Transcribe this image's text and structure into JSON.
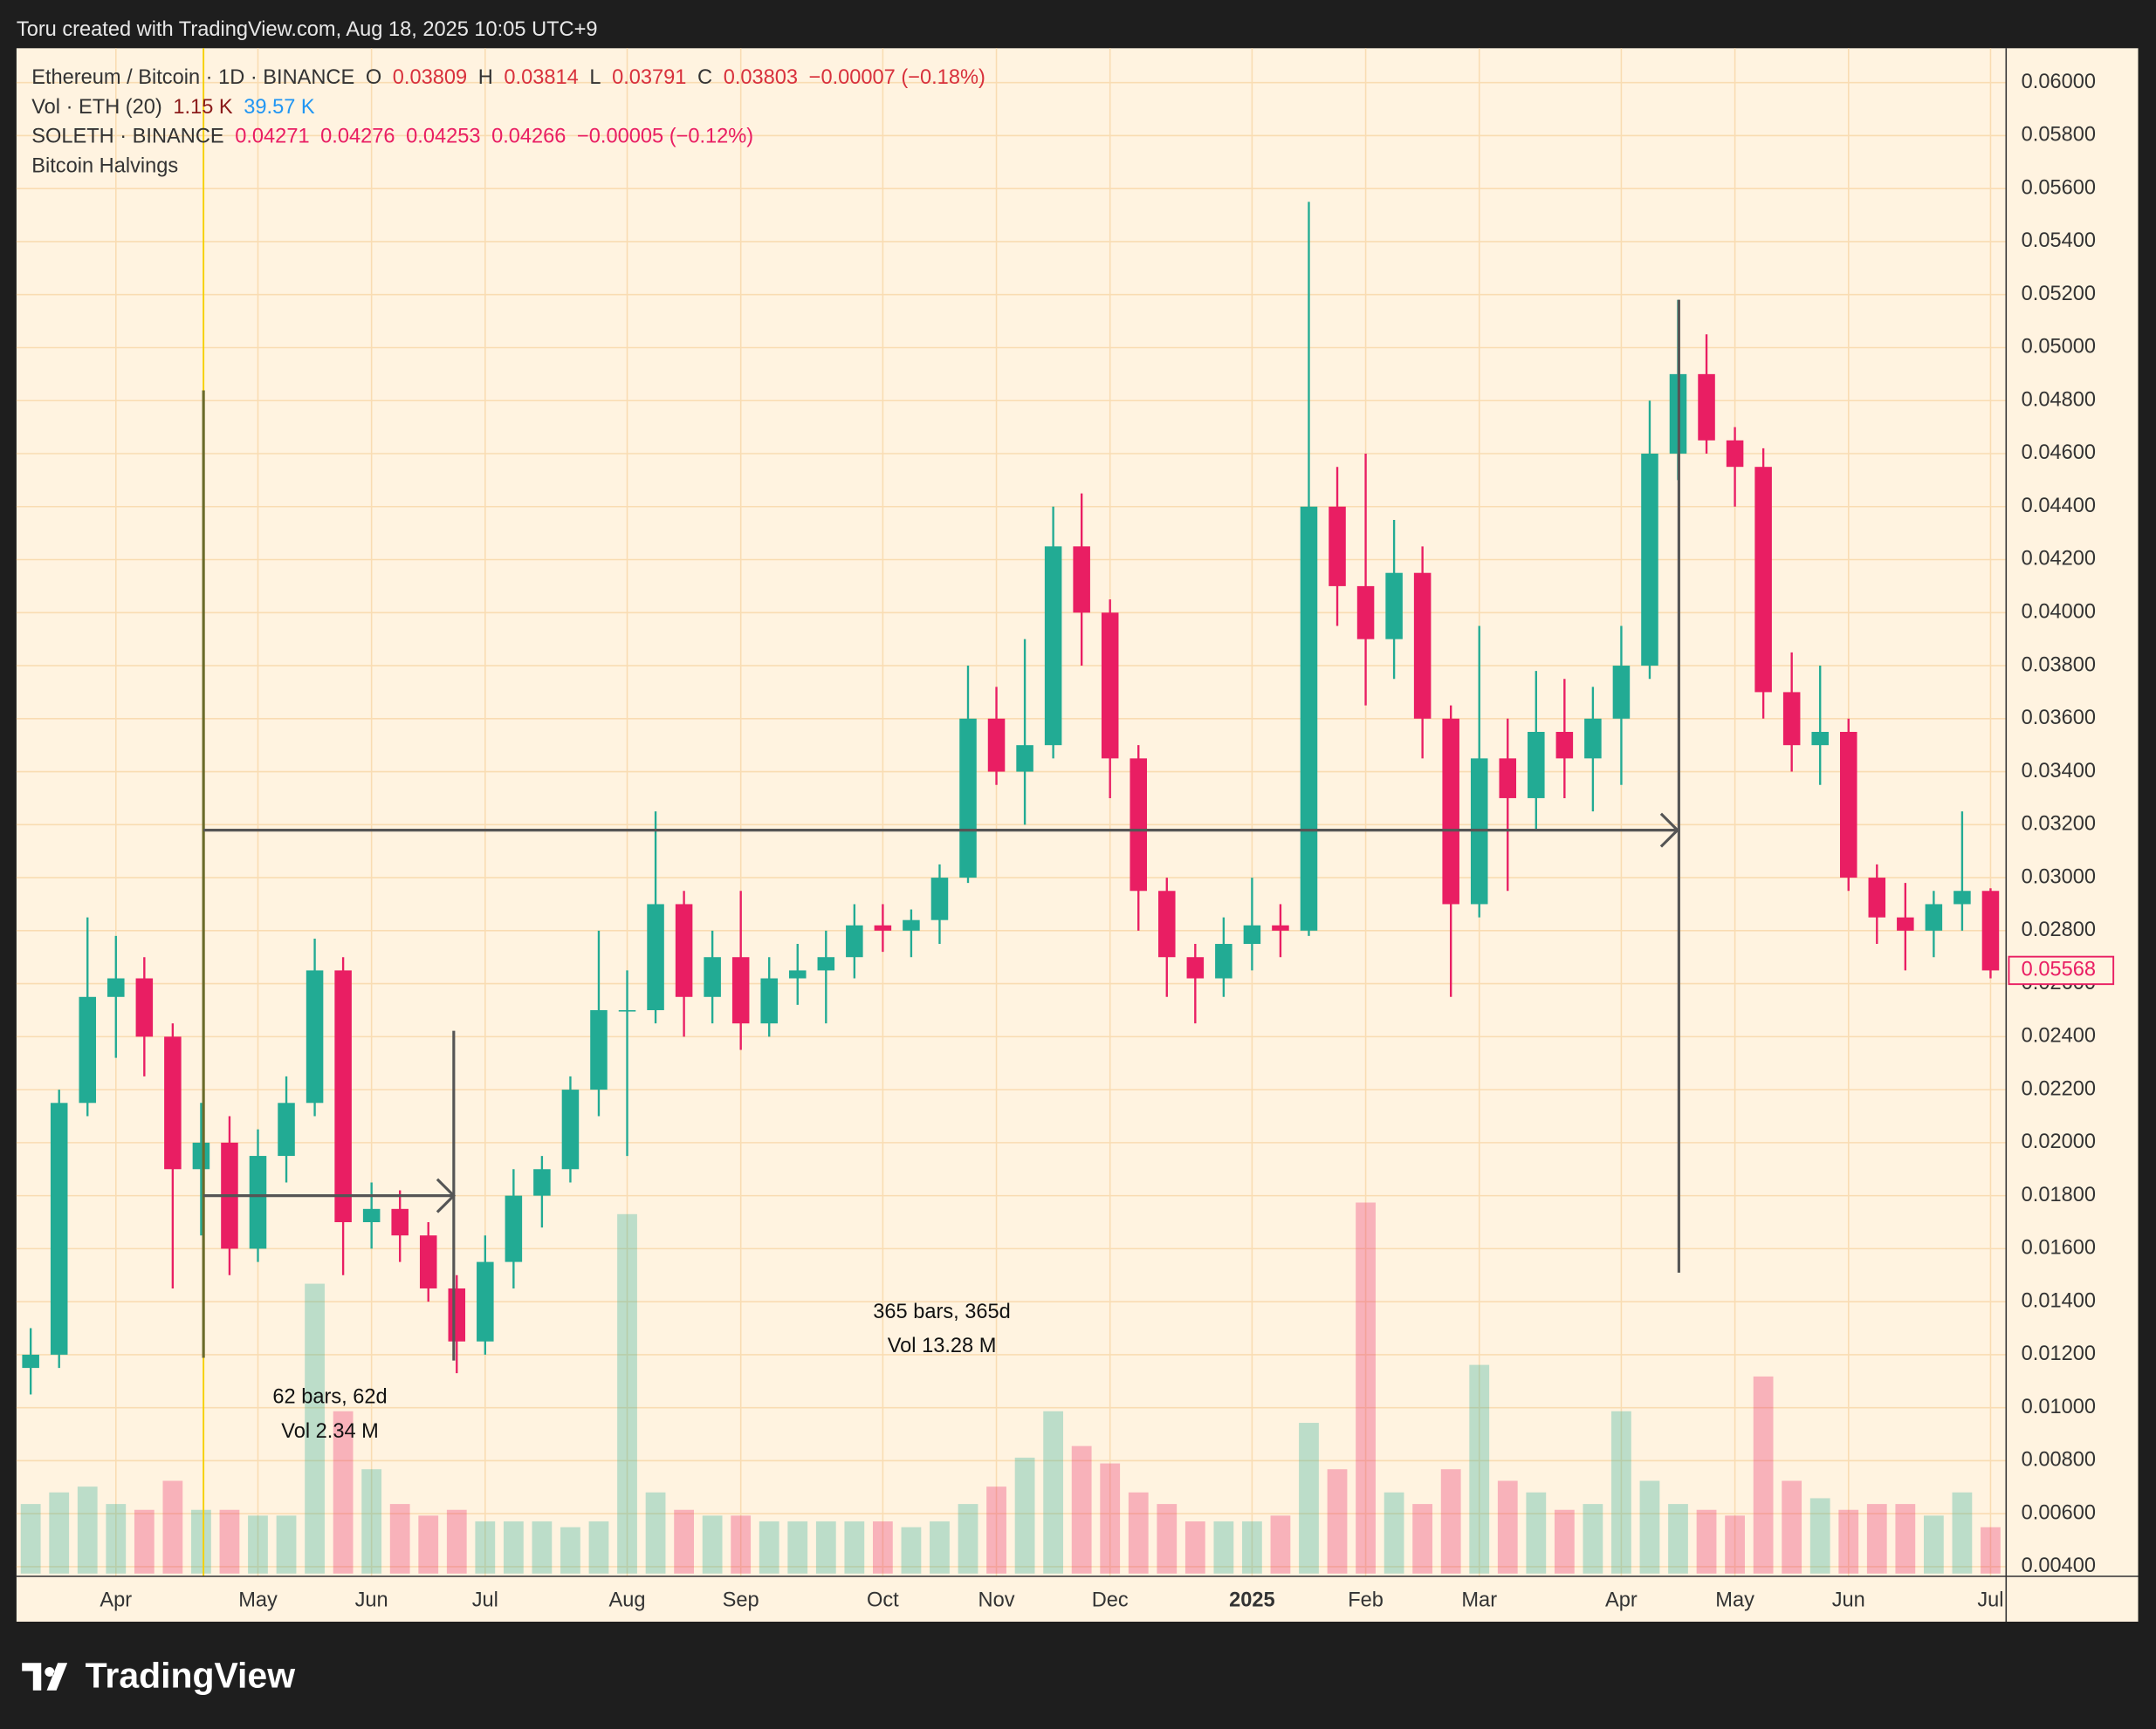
{
  "header": {
    "text": "Toru created with TradingView.com, Aug 18, 2025 10:05 UTC+9"
  },
  "footer": {
    "brand": "TradingView"
  },
  "chart_data": {
    "type": "candlestick",
    "legend": [
      {
        "parts": [
          {
            "text": "Ethereum / Bitcoin · 1D · BINANCE",
            "color": "#333333"
          },
          {
            "text": "O",
            "color": "#333333"
          },
          {
            "text": "0.03809",
            "color": "#d8313c"
          },
          {
            "text": "H",
            "color": "#333333"
          },
          {
            "text": "0.03814",
            "color": "#d8313c"
          },
          {
            "text": "L",
            "color": "#333333"
          },
          {
            "text": "0.03791",
            "color": "#d8313c"
          },
          {
            "text": "C",
            "color": "#333333"
          },
          {
            "text": "0.03803",
            "color": "#d8313c"
          },
          {
            "text": "−0.00007 (−0.18%)",
            "color": "#d8313c"
          }
        ]
      },
      {
        "parts": [
          {
            "text": "Vol · ETH (20)",
            "color": "#333333"
          },
          {
            "text": "1.15 K",
            "color": "#8b1a1a"
          },
          {
            "text": "39.57 K",
            "color": "#2196f3"
          }
        ]
      },
      {
        "parts": [
          {
            "text": "SOLETH · BINANCE",
            "color": "#333333"
          },
          {
            "text": "0.04271",
            "color": "#e91e63"
          },
          {
            "text": "0.04276",
            "color": "#e91e63"
          },
          {
            "text": "0.04253",
            "color": "#e91e63"
          },
          {
            "text": "0.04266",
            "color": "#e91e63"
          },
          {
            "text": "−0.00005 (−0.12%)",
            "color": "#e91e63"
          }
        ]
      },
      {
        "parts": [
          {
            "text": "Bitcoin Halvings",
            "color": "#333333"
          }
        ]
      }
    ],
    "categories": [
      null,
      null,
      null,
      "Apr",
      null,
      null,
      null,
      null,
      "May",
      null,
      null,
      null,
      "Jun",
      null,
      null,
      null,
      "Jul",
      null,
      null,
      null,
      null,
      "Aug",
      null,
      null,
      null,
      "Sep",
      null,
      null,
      null,
      null,
      "Oct",
      null,
      null,
      null,
      "Nov",
      null,
      null,
      null,
      "Dec",
      null,
      null,
      null,
      null,
      "2025",
      null,
      null,
      null,
      "Feb",
      null,
      null,
      null,
      "Mar",
      null,
      null,
      null,
      null,
      "Apr",
      null,
      null,
      null,
      "May",
      null,
      null,
      null,
      "Jun",
      null,
      null,
      null,
      null,
      "Jul"
    ],
    "open": [
      0.0115,
      0.012,
      0.0215,
      0.0255,
      0.0262,
      0.024,
      0.019,
      0.02,
      0.016,
      0.0195,
      0.0215,
      0.0265,
      0.017,
      0.0175,
      0.0165,
      0.0145,
      0.0125,
      0.0155,
      0.018,
      0.019,
      0.022,
      0.025,
      0.025,
      0.029,
      0.0255,
      0.027,
      0.0245,
      0.0262,
      0.0265,
      0.027,
      0.0282,
      0.028,
      0.0284,
      0.03,
      0.036,
      0.034,
      0.035,
      0.0425,
      0.04,
      0.0345,
      0.0295,
      0.027,
      0.0262,
      0.0275,
      0.0282,
      0.028,
      0.044,
      0.041,
      0.039,
      0.0415,
      0.036,
      0.029,
      0.0345,
      0.033,
      0.0355,
      0.0345,
      0.036,
      0.038,
      0.046,
      0.049,
      0.0465,
      0.0455,
      0.037,
      0.035,
      0.0355,
      0.03,
      0.0285,
      0.028,
      0.029,
      0.0295
    ],
    "high": [
      0.013,
      0.022,
      0.0285,
      0.0278,
      0.027,
      0.0245,
      0.0215,
      0.021,
      0.0205,
      0.0225,
      0.0277,
      0.027,
      0.0185,
      0.0182,
      0.017,
      0.015,
      0.0165,
      0.019,
      0.0195,
      0.0225,
      0.028,
      0.0265,
      0.0325,
      0.0295,
      0.028,
      0.0295,
      0.027,
      0.0275,
      0.028,
      0.029,
      0.029,
      0.0288,
      0.0305,
      0.038,
      0.0372,
      0.039,
      0.044,
      0.0445,
      0.0405,
      0.035,
      0.03,
      0.0275,
      0.0285,
      0.03,
      0.029,
      0.0555,
      0.0455,
      0.046,
      0.0435,
      0.0425,
      0.0365,
      0.0395,
      0.036,
      0.0378,
      0.0375,
      0.0372,
      0.0395,
      0.048,
      0.0518,
      0.0505,
      0.047,
      0.0462,
      0.0385,
      0.038,
      0.036,
      0.0305,
      0.0298,
      0.0295,
      0.0325,
      0.0296
    ],
    "low": [
      0.0105,
      0.0115,
      0.021,
      0.0232,
      0.0225,
      0.0145,
      0.0165,
      0.015,
      0.0155,
      0.0185,
      0.021,
      0.015,
      0.016,
      0.0155,
      0.014,
      0.0113,
      0.012,
      0.0145,
      0.0168,
      0.0185,
      0.021,
      0.0195,
      0.0245,
      0.024,
      0.0245,
      0.0235,
      0.024,
      0.0252,
      0.0245,
      0.0262,
      0.0272,
      0.027,
      0.0275,
      0.0298,
      0.0335,
      0.032,
      0.0345,
      0.038,
      0.033,
      0.028,
      0.0255,
      0.0245,
      0.0255,
      0.0265,
      0.027,
      0.0278,
      0.0395,
      0.0365,
      0.0375,
      0.0345,
      0.0255,
      0.0285,
      0.0295,
      0.0318,
      0.033,
      0.0325,
      0.0335,
      0.0375,
      0.045,
      0.046,
      0.044,
      0.036,
      0.034,
      0.0335,
      0.0295,
      0.0275,
      0.0265,
      0.027,
      0.028,
      0.0262
    ],
    "close": [
      0.012,
      0.0215,
      0.0255,
      0.0262,
      0.024,
      0.019,
      0.02,
      0.016,
      0.0195,
      0.0215,
      0.0265,
      0.017,
      0.0175,
      0.0165,
      0.0145,
      0.0125,
      0.0155,
      0.018,
      0.019,
      0.022,
      0.025,
      0.025,
      0.029,
      0.0255,
      0.027,
      0.0245,
      0.0262,
      0.0265,
      0.027,
      0.0282,
      0.028,
      0.0284,
      0.03,
      0.036,
      0.034,
      0.035,
      0.0425,
      0.04,
      0.0345,
      0.0295,
      0.027,
      0.0262,
      0.0275,
      0.0282,
      0.028,
      0.044,
      0.041,
      0.039,
      0.0415,
      0.036,
      0.029,
      0.0345,
      0.033,
      0.0355,
      0.0345,
      0.036,
      0.038,
      0.046,
      0.049,
      0.0465,
      0.0455,
      0.037,
      0.035,
      0.0355,
      0.03,
      0.0285,
      0.028,
      0.029,
      0.0295,
      0.0265
    ],
    "up_color": "#22ab94",
    "down_color": "#e91e63",
    "volume": {
      "values": [
        60,
        70,
        75,
        60,
        55,
        80,
        55,
        55,
        50,
        50,
        250,
        140,
        90,
        60,
        50,
        55,
        45,
        45,
        45,
        40,
        45,
        310,
        70,
        55,
        50,
        50,
        45,
        45,
        45,
        45,
        45,
        40,
        45,
        60,
        75,
        100,
        140,
        110,
        95,
        70,
        60,
        45,
        45,
        45,
        50,
        130,
        90,
        320,
        70,
        60,
        90,
        180,
        80,
        70,
        55,
        60,
        140,
        80,
        60,
        55,
        50,
        170,
        80,
        65,
        55,
        60,
        60,
        50,
        70,
        40
      ],
      "vlim": [
        0,
        320
      ]
    },
    "ylim": [
      0.004,
      0.06
    ],
    "yticks": [
      {
        "value": 0.004,
        "label": "0.00400"
      },
      {
        "value": 0.006,
        "label": "0.00600"
      },
      {
        "value": 0.008,
        "label": "0.00800"
      },
      {
        "value": 0.01,
        "label": "0.01000"
      },
      {
        "value": 0.012,
        "label": "0.01200"
      },
      {
        "value": 0.014,
        "label": "0.01400"
      },
      {
        "value": 0.016,
        "label": "0.01600"
      },
      {
        "value": 0.018,
        "label": "0.01800"
      },
      {
        "value": 0.02,
        "label": "0.02000"
      },
      {
        "value": 0.022,
        "label": "0.02200"
      },
      {
        "value": 0.024,
        "label": "0.02400"
      },
      {
        "value": 0.026,
        "label": "0.02600"
      },
      {
        "value": 0.028,
        "label": "0.02800"
      },
      {
        "value": 0.03,
        "label": "0.03000"
      },
      {
        "value": 0.032,
        "label": "0.03200"
      },
      {
        "value": 0.034,
        "label": "0.03400"
      },
      {
        "value": 0.036,
        "label": "0.03600"
      },
      {
        "value": 0.038,
        "label": "0.03800"
      },
      {
        "value": 0.04,
        "label": "0.04000"
      },
      {
        "value": 0.042,
        "label": "0.04200"
      },
      {
        "value": 0.044,
        "label": "0.04400"
      },
      {
        "value": 0.046,
        "label": "0.04600"
      },
      {
        "value": 0.048,
        "label": "0.04800"
      },
      {
        "value": 0.05,
        "label": "0.05000"
      },
      {
        "value": 0.052,
        "label": "0.05200"
      },
      {
        "value": 0.054,
        "label": "0.05400"
      },
      {
        "value": 0.056,
        "label": "0.05600"
      },
      {
        "value": 0.058,
        "label": "0.05800"
      },
      {
        "value": 0.06,
        "label": "0.06000"
      }
    ],
    "grid": true,
    "last_price_label": "0.05568",
    "annotations": {
      "range1_bars": "62 bars, 62d",
      "range1_vol": "Vol 2.34 M",
      "range2_bars": "365 bars, 365d",
      "range2_vol": "Vol 13.28 M"
    }
  }
}
